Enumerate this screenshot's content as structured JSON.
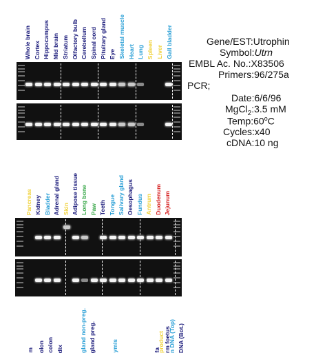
{
  "top_lanes": [
    {
      "label": "Whole brain",
      "color": "#1a1a7a"
    },
    {
      "label": "Cortex",
      "color": "#1a1a7a"
    },
    {
      "label": "Hippocampus",
      "color": "#1a1a7a"
    },
    {
      "label": "Mid brain",
      "color": "#1a1a7a"
    },
    {
      "label": "Striatum",
      "color": "#1a1a7a"
    },
    {
      "label": "Olfactory bulb",
      "color": "#1a1a7a"
    },
    {
      "label": "Cerebellum",
      "color": "#1a1a7a"
    },
    {
      "label": "Spinal cord",
      "color": "#1a1a7a"
    },
    {
      "label": "Pituitary gland",
      "color": "#1a1a7a"
    },
    {
      "label": "Eye",
      "color": "#1a1a7a"
    },
    {
      "label": "Skeletal muscle",
      "color": "#2a9fd6"
    },
    {
      "label": "Heart",
      "color": "#2a9fd6"
    },
    {
      "label": "Lung",
      "color": "#2a9fd6"
    },
    {
      "label": "Spleen",
      "color": "#f0d23c"
    },
    {
      "label": "Liver",
      "color": "#f0d23c"
    },
    {
      "label": "Gall bladder",
      "color": "#2a9fd6"
    }
  ],
  "bottom_lanes": [
    {
      "label": "Pancreas",
      "color": "#f0d23c"
    },
    {
      "label": "Kidney",
      "color": "#1a1a7a"
    },
    {
      "label": "Bladder",
      "color": "#2a9fd6"
    },
    {
      "label": "Adrenal gland",
      "color": "#1a1a7a"
    },
    {
      "label": "Skin",
      "color": "#f0d23c"
    },
    {
      "label": "Adipose tissue",
      "color": "#1a1a7a"
    },
    {
      "label": "Long bone",
      "color": "#3aa84a"
    },
    {
      "label": "Paw",
      "color": "#3aa84a"
    },
    {
      "label": "Teeth",
      "color": "#1a1a7a"
    },
    {
      "label": "Tongue",
      "color": "#2a9fd6"
    },
    {
      "label": "Salivary gland",
      "color": "#2a9fd6"
    },
    {
      "label": "Oesophagus",
      "color": "#1a1a7a"
    },
    {
      "label": "Fundus",
      "color": "#2a9fd6"
    },
    {
      "label": "Antrum",
      "color": "#f0d23c"
    },
    {
      "label": "Duodenum",
      "color": "#d62020"
    },
    {
      "label": "Jejunum",
      "color": "#d62020"
    }
  ],
  "cut_labels": [
    {
      "label": "m",
      "color": "#1a1a7a"
    },
    {
      "label": "olon",
      "color": "#1a1a7a"
    },
    {
      "label": "colon",
      "color": "#1a1a7a"
    },
    {
      "label": "dix",
      "color": "#1a1a7a"
    },
    {
      "label": "gland non-preg.",
      "color": "#2a9fd6"
    },
    {
      "label": "gland preg.",
      "color": "#1a1a7a"
    },
    {
      "label": "ymis",
      "color": "#2a9fd6"
    },
    {
      "label": "fa",
      "color": "#1a1a7a"
    },
    {
      "label": "rm foetus",
      "color": "#1a1a7a"
    },
    {
      "label": "product",
      "color": "#f0d23c"
    },
    {
      "label": "n DNA (Top)",
      "color": "#2a9fd6"
    },
    {
      "label": "DNA (Bot.)",
      "color": "#1a1a7a"
    }
  ],
  "info": {
    "gene_key": "Gene/EST:",
    "gene_val": "Utrophin",
    "symbol_key": "Symbol:",
    "symbol_val": "Utrn",
    "embl_key": "EMBL Ac. No.:",
    "embl_val": "X83506",
    "primers_key": "Primers:",
    "primers_val": "96/275a",
    "pcr_key": "PCR;",
    "date_key": "Date:",
    "date_val": "6/6/96",
    "mgcl_key": "MgCl",
    "mgcl_sub": "2",
    "mgcl_colon": ":",
    "mgcl_val": "3.5 mM",
    "temp_key": "Temp:",
    "temp_val": "60",
    "temp_sup": "o",
    "temp_unit": "C",
    "cycles_key": "Cycles:",
    "cycles_val": "x40",
    "cdna_key": "cDNA:",
    "cdna_val": "10 ng"
  },
  "gels": {
    "top_gel_1_intensity": [
      1,
      1,
      1,
      1,
      1,
      1,
      1,
      1,
      1,
      1,
      0.7,
      0.5,
      0.3,
      0,
      0,
      1
    ],
    "top_gel_2_intensity": [
      1,
      1,
      1,
      1,
      1,
      1,
      1,
      1,
      1,
      1,
      0.7,
      0.5,
      0.3,
      0,
      0,
      1
    ],
    "bottom_gel_1_intensity": [
      0,
      1,
      1,
      1,
      0,
      1,
      0.6,
      0,
      1,
      1,
      1,
      1,
      1,
      1,
      1,
      1
    ],
    "bottom_gel_2_intensity": [
      0,
      1,
      1,
      1,
      0,
      1,
      0.3,
      1,
      1,
      1,
      1,
      1,
      1,
      1,
      1,
      1
    ]
  }
}
